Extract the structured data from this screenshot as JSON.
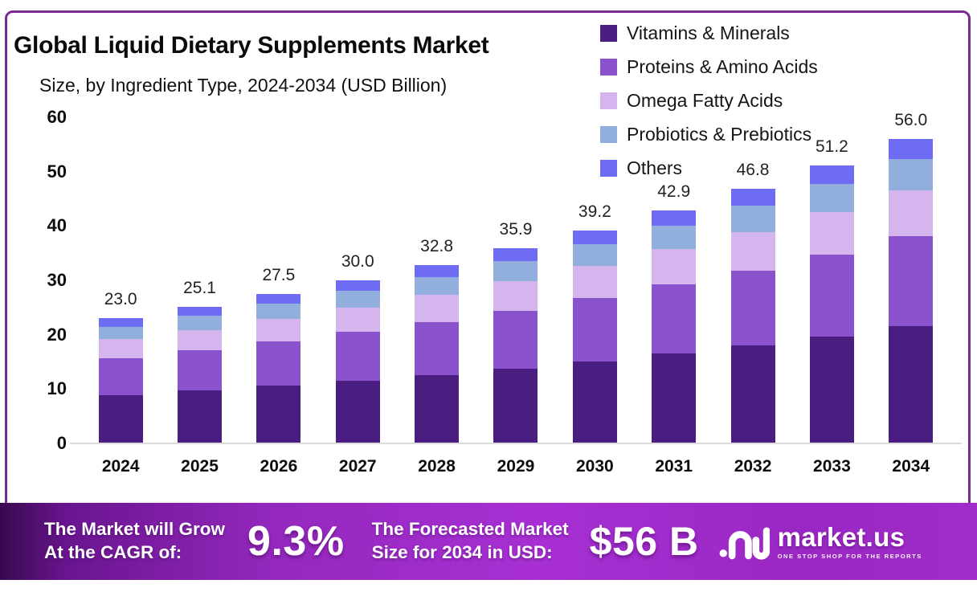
{
  "header": {
    "title": "Global Liquid Dietary Supplements Market",
    "subtitle": "Size, by Ingredient Type, 2024-2034 (USD Billion)"
  },
  "chart_data": {
    "type": "bar",
    "stacked": true,
    "title": "Global Liquid Dietary Supplements Market Size, by Ingredient Type, 2024-2034 (USD Billion)",
    "categories": [
      "2024",
      "2025",
      "2026",
      "2027",
      "2028",
      "2029",
      "2030",
      "2031",
      "2032",
      "2033",
      "2034"
    ],
    "series": [
      {
        "name": "Vitamins & Minerals",
        "color": "#4a1e80",
        "values": [
          8.9,
          9.7,
          10.6,
          11.6,
          12.6,
          13.8,
          15.1,
          16.5,
          18.0,
          19.7,
          21.6
        ]
      },
      {
        "name": "Proteins & Amino Acids",
        "color": "#8a52cc",
        "values": [
          6.8,
          7.4,
          8.1,
          8.9,
          9.7,
          10.6,
          11.6,
          12.7,
          13.8,
          15.1,
          16.5
        ]
      },
      {
        "name": "Omega Fatty Acids",
        "color": "#d5b5ee",
        "values": [
          3.5,
          3.8,
          4.2,
          4.5,
          5.0,
          5.4,
          5.9,
          6.5,
          7.1,
          7.7,
          8.5
        ]
      },
      {
        "name": "Probiotics & Prebiotics",
        "color": "#92aedd",
        "values": [
          2.3,
          2.6,
          2.8,
          3.1,
          3.3,
          3.7,
          4.0,
          4.4,
          4.8,
          5.2,
          5.7
        ]
      },
      {
        "name": "Others",
        "color": "#6d6cf3",
        "values": [
          1.5,
          1.6,
          1.8,
          1.9,
          2.2,
          2.4,
          2.6,
          2.8,
          3.1,
          3.5,
          3.7
        ]
      }
    ],
    "totals": [
      23.0,
      25.1,
      27.5,
      30.0,
      32.8,
      35.9,
      39.2,
      42.9,
      46.8,
      51.2,
      56.0
    ],
    "total_labels": [
      "23.0",
      "25.1",
      "27.5",
      "30.0",
      "32.8",
      "35.9",
      "39.2",
      "42.9",
      "46.8",
      "51.2",
      "56.0"
    ],
    "ylim": [
      0,
      60
    ],
    "yticks": [
      0,
      10,
      20,
      30,
      40,
      50,
      60
    ],
    "grid": false,
    "legend_position": "top-right"
  },
  "banner": {
    "cagr_label_line1": "The Market will Grow",
    "cagr_label_line2": "At the CAGR of:",
    "cagr_value": "9.3%",
    "forecast_label_line1": "The Forecasted Market",
    "forecast_label_line2": "Size for 2034 in USD:",
    "forecast_value": "$56 B",
    "brand": "market.us",
    "brand_tagline": "ONE STOP SHOP FOR THE REPORTS"
  },
  "colors": {
    "card_border": "#7b2c93",
    "baseline": "#dcdcdc",
    "banner_start": "#38094f",
    "banner_mid": "#a72fd3"
  }
}
